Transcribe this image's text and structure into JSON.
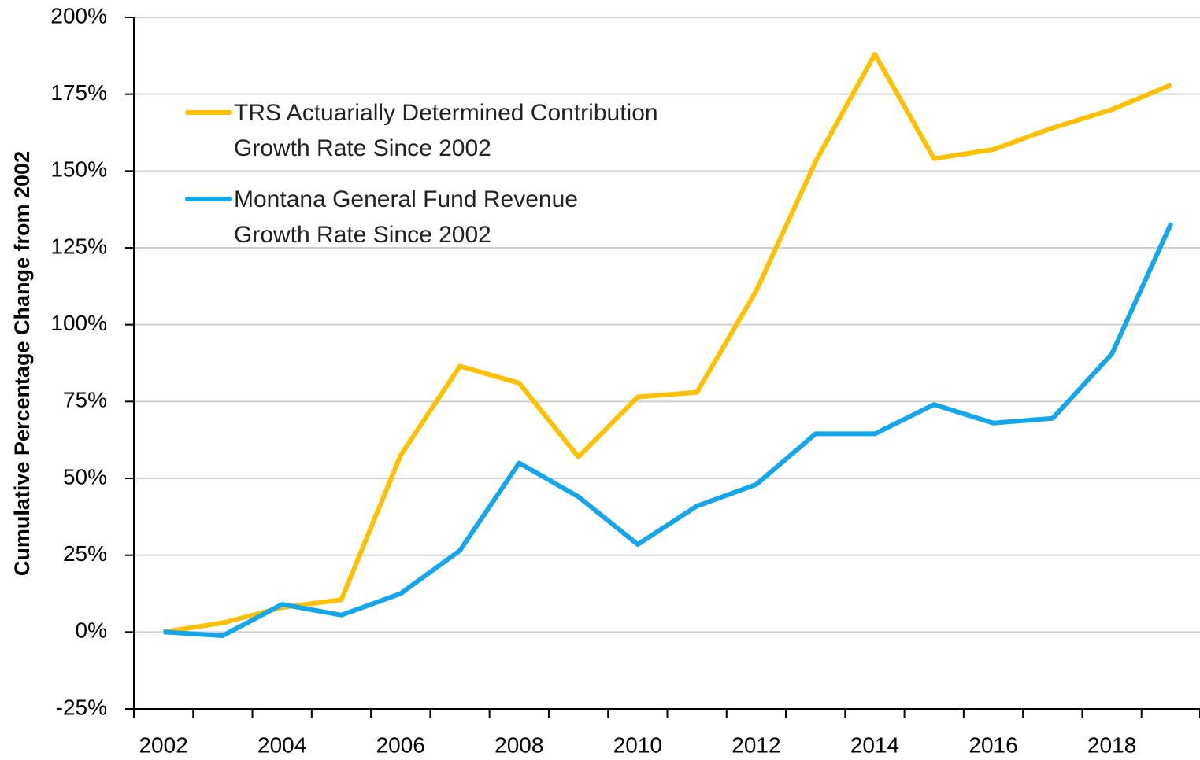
{
  "chart_data": {
    "type": "line",
    "y_axis_label": "Cumulative Percentage Change from 2002",
    "categories": [
      "2002",
      null,
      "2004",
      null,
      "2006",
      null,
      "2008",
      null,
      "2010",
      null,
      "2012",
      null,
      "2014",
      null,
      "2016",
      null,
      "2018",
      null
    ],
    "series": [
      {
        "name": "TRS Actuarially Determined Contribution\nGrowth Rate Since 2002",
        "color": "#FFC000",
        "values": [
          0,
          3,
          8,
          10.5,
          57.5,
          86.5,
          81,
          57,
          76.5,
          78,
          111,
          153,
          188,
          154,
          157,
          164,
          170,
          178
        ]
      },
      {
        "name": "Montana General Fund Revenue\nGrowth Rate Since 2002",
        "color": "#14A6EA",
        "values": [
          0,
          -1.2,
          9,
          5.5,
          12.5,
          26.5,
          55,
          44,
          28.5,
          41,
          48,
          64.5,
          64.5,
          74,
          68,
          69.5,
          90.5,
          133
        ]
      }
    ],
    "ylim": [
      -25,
      200
    ],
    "yticks": [
      {
        "value": -25,
        "label": "-25%"
      },
      {
        "value": 0,
        "label": "0%"
      },
      {
        "value": 25,
        "label": "25%"
      },
      {
        "value": 50,
        "label": "50%"
      },
      {
        "value": 75,
        "label": "75%"
      },
      {
        "value": 100,
        "label": "100%"
      },
      {
        "value": 125,
        "label": "125%"
      },
      {
        "value": 150,
        "label": "150%"
      },
      {
        "value": 175,
        "label": "175%"
      },
      {
        "value": 200,
        "label": "200%"
      }
    ],
    "grid": true,
    "legend_position": "upper-left"
  }
}
